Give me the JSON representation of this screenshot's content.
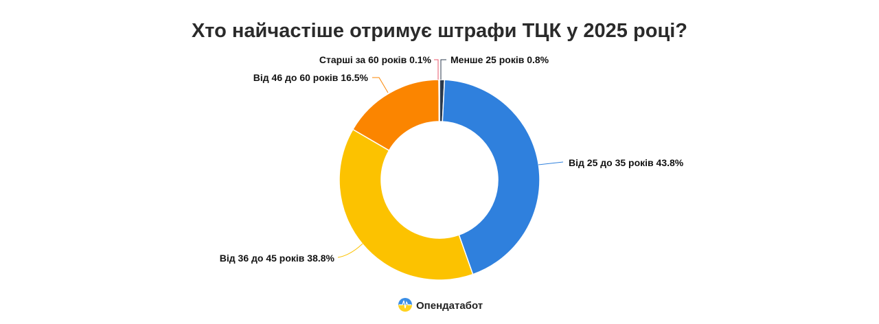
{
  "chart_data": {
    "type": "pie",
    "subtype": "donut",
    "title": "Хто найчастіше отримує штрафи ТЦК у 2025 році?",
    "slices": [
      {
        "label": "Менше 25 років",
        "value": 0.8,
        "text": "0.8%",
        "color": "#2b3a4c"
      },
      {
        "label": "Від 25 до 35 років",
        "value": 43.8,
        "text": "43.8%",
        "color": "#2f80dd"
      },
      {
        "label": "Від 36 до 45 років",
        "value": 38.8,
        "text": "38.8%",
        "color": "#fcc200"
      },
      {
        "label": "Від 46 до 60 років",
        "value": 16.5,
        "text": "16.5%",
        "color": "#fb8500"
      },
      {
        "label": "Старші за 60 років",
        "value": 0.1,
        "text": "0.1%",
        "color": "#e8546a"
      }
    ],
    "legend": "none"
  },
  "brand": {
    "name": "Опендатабот"
  }
}
